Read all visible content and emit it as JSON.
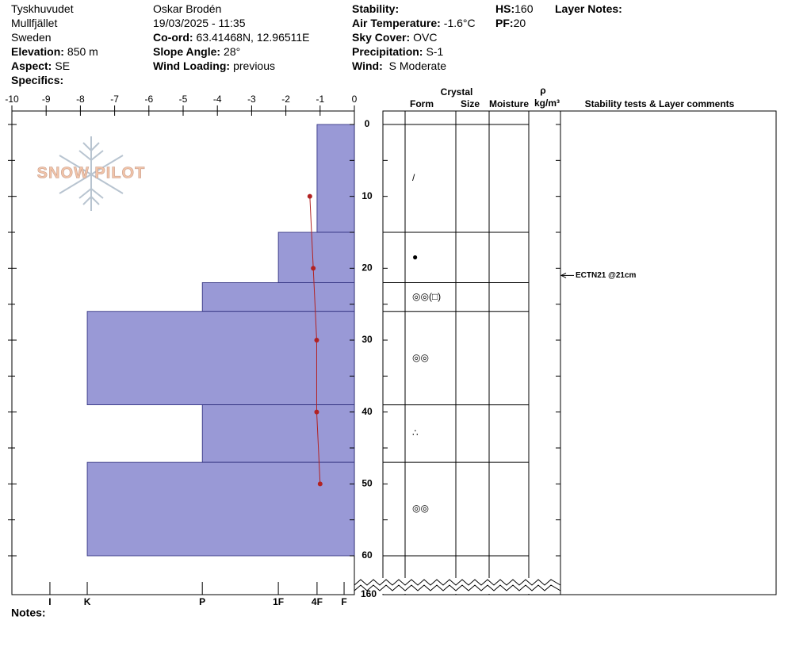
{
  "header": {
    "columns": [
      [
        {
          "value": "Tyskhuvudet"
        },
        {
          "value": "Mullfjället"
        },
        {
          "value": "Sweden"
        },
        {
          "label": "Elevation:",
          "value": "850 m"
        },
        {
          "label": "Aspect:",
          "value": "SE"
        },
        {
          "label": "Specifics:"
        }
      ],
      [
        {
          "value": "Oskar Brodén"
        },
        {
          "value": "19/03/2025 - 11:35"
        },
        {
          "label": "Co-ord:",
          "value": "63.41468N, 12.96511E"
        },
        {
          "label": "Slope Angle:",
          "value": "28°"
        },
        {
          "label": "Wind Loading:",
          "value": "previous"
        }
      ],
      [
        {
          "label": "Stability:"
        },
        {
          "label": "Air Temperature:",
          "value": "-1.6°C"
        },
        {
          "label": "Sky Cover:",
          "value": "OVC"
        },
        {
          "label": "Precipitation:",
          "value": "S-1"
        },
        {
          "label": "Wind:",
          "value": " S Moderate"
        }
      ],
      [
        {
          "label": "HS:",
          "value": "160"
        },
        {
          "label": "PF:",
          "value": "20"
        }
      ],
      [
        {
          "label": "Layer Notes:"
        }
      ]
    ]
  },
  "logo": "SNOW PILOT",
  "notes": "Notes:",
  "chart_data": {
    "type": "snow-profile",
    "xlim": [
      -10,
      0
    ],
    "xticks": [
      -10,
      -9,
      -8,
      -7,
      -6,
      -5,
      -4,
      -3,
      -2,
      -1,
      0
    ],
    "ylim": [
      0,
      60
    ],
    "yticks": [
      0,
      10,
      20,
      30,
      40,
      50,
      60
    ],
    "yminor": [
      5,
      15,
      25,
      35,
      45,
      55
    ],
    "bottom_tick": 160,
    "hlim": [
      0,
      100
    ],
    "hardness_ticks": [
      {
        "value": 88.9,
        "label": "I"
      },
      {
        "value": 78.0,
        "label": "K"
      },
      {
        "value": 44.4,
        "label": "P"
      },
      {
        "value": 22.2,
        "label": "1F"
      },
      {
        "value": 10.9,
        "label": "4F"
      },
      {
        "value": 3.0,
        "label": "F"
      }
    ],
    "bar_color": "#9999d6",
    "temperature": {
      "depth": [
        10,
        20,
        30,
        40,
        50
      ],
      "values": [
        -1.3,
        -1.2,
        -1.1,
        -1.1,
        -1.0
      ],
      "color": "#b22222"
    },
    "layers": [
      {
        "top": 0,
        "bottom": 15,
        "hardness": 10.9,
        "form": "/"
      },
      {
        "top": 15,
        "bottom": 22,
        "hardness": 22.2,
        "form": "●"
      },
      {
        "top": 22,
        "bottom": 26,
        "hardness": 44.4,
        "form": "◎◎(□)"
      },
      {
        "top": 26,
        "bottom": 39,
        "hardness": 78.0,
        "form": "◎◎"
      },
      {
        "top": 39,
        "bottom": 47,
        "hardness": 44.4,
        "form": "∴"
      },
      {
        "top": 47,
        "bottom": 60,
        "hardness": 78.0,
        "form": "◎◎"
      }
    ],
    "table_headers": {
      "crystal": "Crystal",
      "form": "Form",
      "size": "Size",
      "moisture": "Moisture",
      "rho": "ρ",
      "density_unit": "kg/m³",
      "comments": "Stability tests & Layer comments"
    },
    "stability_tests": [
      {
        "label": "ECTN21 @21cm",
        "depth": 21
      }
    ]
  }
}
